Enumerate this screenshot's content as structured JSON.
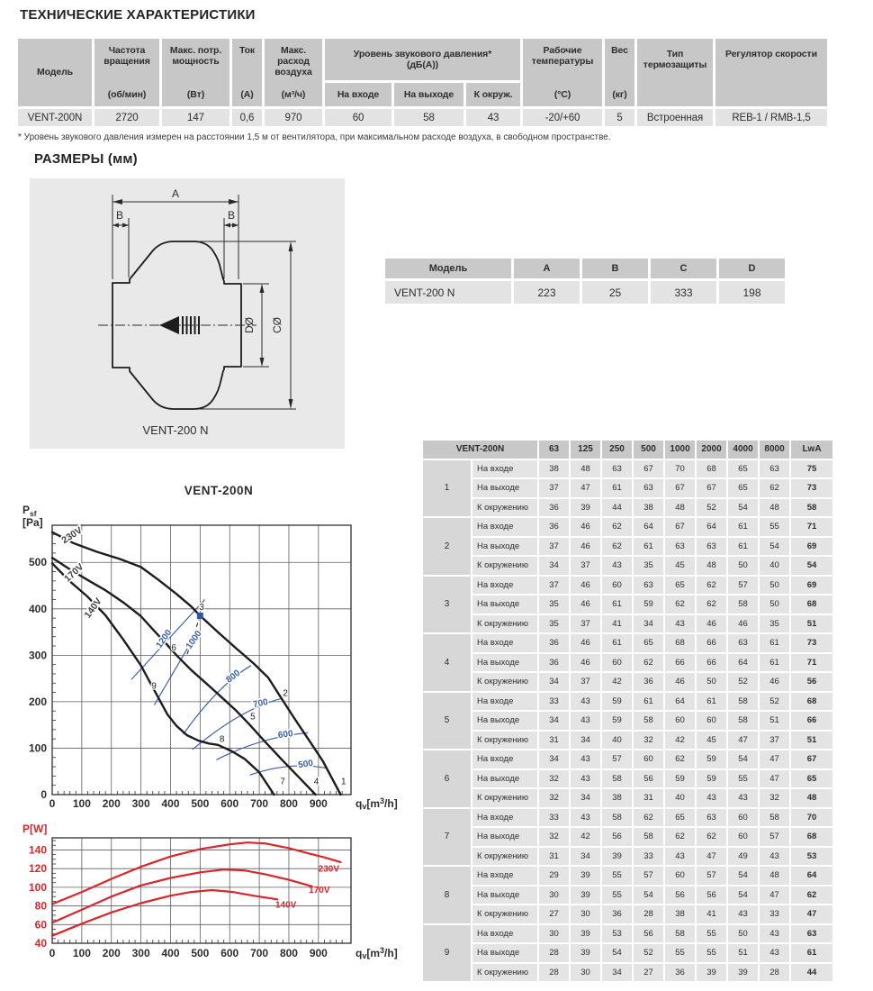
{
  "page": {
    "title": "ТЕХНИЧЕСКИЕ ХАРАКТЕРИСТИКИ",
    "sizes_heading": "РАЗМЕРЫ (мм)",
    "footnote": "* Уровень звукового давления измерен на расстоянии 1,5 м от вентилятора, при максимальном расходе воздуха, в свободном пространстве."
  },
  "spec_table": {
    "model_header": "Модель",
    "cols": {
      "freq": {
        "title": "Частота вращения",
        "unit": "(об/мин)"
      },
      "power": {
        "title": "Макс. потр. мощность",
        "unit": "(Вт)"
      },
      "current": {
        "title": "Ток",
        "unit": "(А)"
      },
      "airflow": {
        "title": "Макс. расход воздуха",
        "unit": "(м³/ч)"
      },
      "noise": {
        "title": "Уровень звукового давления*",
        "subtitle": "(дБ(А))",
        "sub": [
          "На входе",
          "На выходе",
          "К окруж."
        ]
      },
      "temp": {
        "title": "Рабочие температуры",
        "unit": "(°С)"
      },
      "weight": {
        "title": "Вес",
        "unit": "(кг)"
      },
      "thermal": {
        "title": "Тип термозащиты"
      },
      "regulator": {
        "title": "Регулятор скорости"
      }
    },
    "row": {
      "model": "VENT-200N",
      "freq": "2720",
      "power": "147",
      "current": "0,6",
      "airflow": "970",
      "noise_in": "60",
      "noise_out": "58",
      "noise_env": "43",
      "temp": "-20/+60",
      "weight": "5",
      "thermal": "Встроенная",
      "regulator": "REB-1 / RMB-1,5"
    }
  },
  "drawing": {
    "labels": {
      "a": "A",
      "b_left": "B",
      "b_right": "B",
      "d": "DØ",
      "c": "CØ",
      "caption": "VENT-200 N"
    }
  },
  "dim_table": {
    "headers": [
      "Модель",
      "A",
      "B",
      "C",
      "D"
    ],
    "row": [
      "VENT-200 N",
      "223",
      "25",
      "333",
      "198"
    ]
  },
  "sound_table": {
    "header": [
      "VENT-200N",
      "63",
      "125",
      "250",
      "500",
      "1000",
      "2000",
      "4000",
      "8000",
      "LwA"
    ],
    "row_labels": [
      "На входе",
      "На выходе",
      "К окружению"
    ],
    "groups": [
      {
        "n": "1",
        "rows": [
          [
            38,
            48,
            63,
            67,
            70,
            68,
            65,
            63,
            75
          ],
          [
            37,
            47,
            61,
            63,
            67,
            67,
            65,
            62,
            73
          ],
          [
            36,
            39,
            44,
            38,
            48,
            52,
            54,
            48,
            58
          ]
        ]
      },
      {
        "n": "2",
        "rows": [
          [
            36,
            46,
            62,
            64,
            67,
            64,
            61,
            55,
            71
          ],
          [
            37,
            46,
            62,
            61,
            63,
            63,
            61,
            54,
            69
          ],
          [
            34,
            37,
            43,
            35,
            45,
            48,
            50,
            40,
            54
          ]
        ]
      },
      {
        "n": "3",
        "rows": [
          [
            37,
            46,
            60,
            63,
            65,
            62,
            57,
            50,
            69
          ],
          [
            35,
            46,
            61,
            59,
            62,
            62,
            58,
            50,
            68
          ],
          [
            35,
            37,
            41,
            34,
            43,
            46,
            46,
            35,
            51
          ]
        ]
      },
      {
        "n": "4",
        "rows": [
          [
            36,
            46,
            61,
            65,
            68,
            66,
            63,
            61,
            73
          ],
          [
            36,
            46,
            60,
            62,
            66,
            66,
            64,
            61,
            71
          ],
          [
            34,
            37,
            42,
            36,
            46,
            50,
            52,
            46,
            56
          ]
        ]
      },
      {
        "n": "5",
        "rows": [
          [
            33,
            43,
            59,
            61,
            64,
            61,
            58,
            52,
            68
          ],
          [
            34,
            43,
            59,
            58,
            60,
            60,
            58,
            51,
            66
          ],
          [
            31,
            34,
            40,
            32,
            42,
            45,
            47,
            37,
            51
          ]
        ]
      },
      {
        "n": "6",
        "rows": [
          [
            34,
            43,
            57,
            60,
            62,
            59,
            54,
            47,
            67
          ],
          [
            32,
            43,
            58,
            56,
            59,
            59,
            55,
            47,
            65
          ],
          [
            32,
            34,
            38,
            31,
            40,
            43,
            43,
            32,
            48
          ]
        ]
      },
      {
        "n": "7",
        "rows": [
          [
            33,
            43,
            58,
            62,
            65,
            63,
            60,
            58,
            70
          ],
          [
            32,
            42,
            56,
            58,
            62,
            62,
            60,
            57,
            68
          ],
          [
            31,
            34,
            39,
            33,
            43,
            47,
            49,
            43,
            53
          ]
        ]
      },
      {
        "n": "8",
        "rows": [
          [
            29,
            39,
            55,
            57,
            60,
            57,
            54,
            48,
            64
          ],
          [
            30,
            39,
            55,
            54,
            56,
            56,
            54,
            47,
            62
          ],
          [
            27,
            30,
            36,
            28,
            38,
            41,
            43,
            33,
            47
          ]
        ]
      },
      {
        "n": "9",
        "rows": [
          [
            30,
            39,
            53,
            56,
            58,
            55,
            50,
            43,
            63
          ],
          [
            28,
            39,
            54,
            52,
            55,
            55,
            51,
            43,
            61
          ],
          [
            28,
            30,
            34,
            27,
            36,
            39,
            39,
            28,
            44
          ]
        ]
      }
    ]
  },
  "chart_data": [
    {
      "type": "line",
      "title": "VENT-200N",
      "xlabel": "qv[m3/h]",
      "ylabel": "Psf [Pa]",
      "xlim": [
        0,
        1010
      ],
      "ylim": [
        0,
        580
      ],
      "xticks": [
        0,
        100,
        200,
        300,
        400,
        500,
        600,
        700,
        800,
        900
      ],
      "yticks": [
        0,
        100,
        200,
        300,
        400,
        500
      ],
      "grid": true,
      "series": [
        {
          "name": "230V",
          "label_at": {
            "q": 72,
            "v": 553,
            "rot": -33
          },
          "points": [
            [
              0,
              565
            ],
            [
              70,
              542
            ],
            [
              150,
              523
            ],
            [
              230,
              507
            ],
            [
              300,
              490
            ],
            [
              360,
              462
            ],
            [
              420,
              432
            ],
            [
              470,
              405
            ],
            [
              500,
              385
            ],
            [
              560,
              350
            ],
            [
              620,
              316
            ],
            [
              680,
              283
            ],
            [
              730,
              252
            ],
            [
              770,
              212
            ],
            [
              820,
              163
            ],
            [
              865,
              120
            ],
            [
              915,
              72
            ],
            [
              975,
              0
            ]
          ]
        },
        {
          "name": "170V",
          "label_at": {
            "q": 80,
            "v": 473,
            "rot": -42
          },
          "points": [
            [
              0,
              510
            ],
            [
              60,
              485
            ],
            [
              120,
              462
            ],
            [
              180,
              440
            ],
            [
              240,
              414
            ],
            [
              300,
              384
            ],
            [
              350,
              349
            ],
            [
              385,
              325
            ],
            [
              420,
              300
            ],
            [
              470,
              268
            ],
            [
              520,
              240
            ],
            [
              570,
              211
            ],
            [
              620,
              182
            ],
            [
              665,
              152
            ],
            [
              715,
              117
            ],
            [
              775,
              76
            ],
            [
              830,
              40
            ],
            [
              890,
              0
            ]
          ]
        },
        {
          "name": "140V",
          "label_at": {
            "q": 146,
            "v": 398,
            "rot": -54
          },
          "points": [
            [
              0,
              498
            ],
            [
              60,
              459
            ],
            [
              120,
              426
            ],
            [
              180,
              386
            ],
            [
              240,
              334
            ],
            [
              300,
              278
            ],
            [
              350,
              219
            ],
            [
              390,
              172
            ],
            [
              420,
              148
            ],
            [
              455,
              128
            ],
            [
              495,
              116
            ],
            [
              530,
              110
            ],
            [
              560,
              107
            ],
            [
              605,
              94
            ],
            [
              650,
              77
            ],
            [
              700,
              48
            ],
            [
              750,
              0
            ]
          ]
        }
      ],
      "iso_lines": [
        {
          "label": "1200",
          "x1": 268,
          "y1": 248,
          "x2": 516,
          "y2": 420,
          "lx": 385,
          "ly": 332,
          "rot": -55
        },
        {
          "label": "1000",
          "x1": 345,
          "y1": 193,
          "x2": 462,
          "y2": 320,
          "lx": 486,
          "ly": 330,
          "rot": -55
        }
      ],
      "iso_arcs": [
        {
          "label": "800",
          "p0": [
            443,
            130
          ],
          "c": [
            560,
            235
          ],
          "p1": [
            672,
            278
          ],
          "lx": 617,
          "ly": 250,
          "rot": -38
        },
        {
          "label": "700",
          "p0": [
            474,
            97
          ],
          "c": [
            640,
            185
          ],
          "p1": [
            775,
            207
          ],
          "lx": 706,
          "ly": 191,
          "rot": -12
        },
        {
          "label": "600",
          "p0": [
            555,
            75
          ],
          "c": [
            710,
            125
          ],
          "p1": [
            865,
            133
          ],
          "lx": 790,
          "ly": 124,
          "rot": -8
        },
        {
          "label": "500",
          "p0": [
            668,
            42
          ],
          "c": [
            800,
            72
          ],
          "p1": [
            928,
            57
          ],
          "lx": 858,
          "ly": 60,
          "rot": -8
        }
      ],
      "dash_leader": {
        "x1": 456,
        "y1": 302,
        "x2": 496,
        "y2": 377
      },
      "op_points": [
        {
          "n": "1",
          "q": 985,
          "v": 22
        },
        {
          "n": "2",
          "q": 788,
          "v": 212
        },
        {
          "n": "3",
          "q": 505,
          "v": 398
        },
        {
          "n": "4",
          "q": 893,
          "v": 22
        },
        {
          "n": "5",
          "q": 678,
          "v": 162
        },
        {
          "n": "6",
          "q": 411,
          "v": 310
        },
        {
          "n": "7",
          "q": 779,
          "v": 22
        },
        {
          "n": "8",
          "q": 574,
          "v": 113
        },
        {
          "n": "9",
          "q": 344,
          "v": 228
        }
      ],
      "marker": {
        "q": 500,
        "v": 385,
        "color": "#2b57a5"
      }
    },
    {
      "type": "line",
      "title": "",
      "xlabel": "qv[m3/h]",
      "ylabel": "P[W]",
      "xlim": [
        0,
        1010
      ],
      "ylim": [
        40,
        153
      ],
      "xticks": [
        0,
        100,
        200,
        300,
        400,
        500,
        600,
        700,
        800,
        900
      ],
      "yticks": [
        40,
        60,
        80,
        100,
        120,
        140
      ],
      "grid": true,
      "series": [
        {
          "name": "230V",
          "label_at": {
            "q": 935,
            "v": 117
          },
          "points": [
            [
              0,
              82
            ],
            [
              100,
              95
            ],
            [
              200,
              109
            ],
            [
              300,
              122
            ],
            [
              400,
              133
            ],
            [
              500,
              141
            ],
            [
              600,
              146
            ],
            [
              660,
              148
            ],
            [
              720,
              147
            ],
            [
              800,
              142
            ],
            [
              870,
              136
            ],
            [
              920,
              132
            ],
            [
              975,
              127
            ]
          ]
        },
        {
          "name": "170V",
          "label_at": {
            "q": 903,
            "v": 94
          },
          "points": [
            [
              0,
              62
            ],
            [
              100,
              76
            ],
            [
              200,
              90
            ],
            [
              300,
              102
            ],
            [
              400,
              110
            ],
            [
              500,
              116
            ],
            [
              580,
              119
            ],
            [
              650,
              118
            ],
            [
              720,
              114
            ],
            [
              800,
              108
            ],
            [
              878,
              101
            ]
          ]
        },
        {
          "name": "140V",
          "label_at": {
            "q": 790,
            "v": 78
          },
          "points": [
            [
              0,
              48
            ],
            [
              100,
              61
            ],
            [
              200,
              73
            ],
            [
              300,
              83
            ],
            [
              400,
              91
            ],
            [
              470,
              95
            ],
            [
              540,
              97
            ],
            [
              610,
              95
            ],
            [
              680,
              91
            ],
            [
              761,
              87
            ]
          ]
        }
      ]
    }
  ]
}
